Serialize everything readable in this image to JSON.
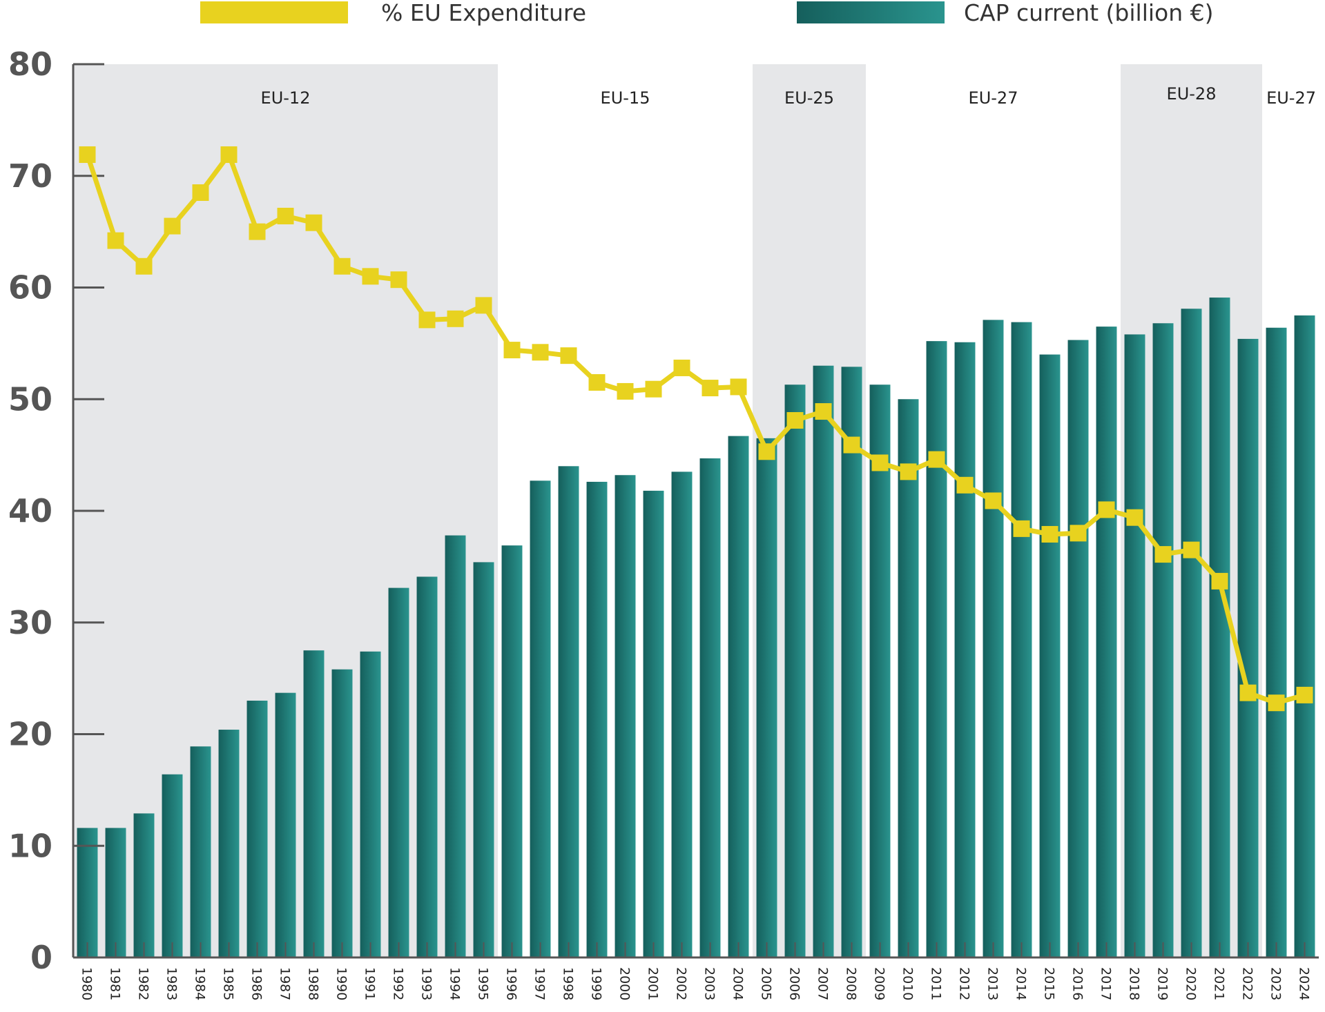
{
  "chart_data": {
    "type": "bar",
    "title": "",
    "xlabel": "",
    "ylabel": "",
    "ylim": [
      0,
      80
    ],
    "yticks": [
      0,
      10,
      20,
      30,
      40,
      50,
      60,
      70,
      80
    ],
    "categories": [
      "1980",
      "1981",
      "1982",
      "1983",
      "1984",
      "1985",
      "1986",
      "1987",
      "1988",
      "1990",
      "1991",
      "1992",
      "1993",
      "1994",
      "1995",
      "1996",
      "1997",
      "1998",
      "1999",
      "2000",
      "2001",
      "2002",
      "2003",
      "2004",
      "2005",
      "2006",
      "2007",
      "2008",
      "2009",
      "2010",
      "2011",
      "2012",
      "2013",
      "2014",
      "2015",
      "2016",
      "2017",
      "2018",
      "2019",
      "2020",
      "2021",
      "2022",
      "2023",
      "2024"
    ],
    "series": [
      {
        "name": "CAP current (billion €)",
        "type": "bar",
        "color": "#1f7f7a",
        "values": [
          11.6,
          11.6,
          12.9,
          16.4,
          18.9,
          20.4,
          23.0,
          23.7,
          27.5,
          25.8,
          27.4,
          33.1,
          34.1,
          37.8,
          35.4,
          36.9,
          42.7,
          44.0,
          42.6,
          43.2,
          41.8,
          43.5,
          44.7,
          46.7,
          46.5,
          51.3,
          53.0,
          52.9,
          51.3,
          50.0,
          55.2,
          55.1,
          57.1,
          56.9,
          54.0,
          55.3,
          56.5,
          55.8,
          56.8,
          58.1,
          59.1,
          55.4,
          56.4,
          57.5
        ]
      },
      {
        "name": "% EU Expenditure",
        "type": "line",
        "color": "#e8d21f",
        "values": [
          71.9,
          64.2,
          61.9,
          65.5,
          68.5,
          71.9,
          65.0,
          66.4,
          65.8,
          61.9,
          61.0,
          60.7,
          57.1,
          57.2,
          58.4,
          54.4,
          54.2,
          53.9,
          51.5,
          50.7,
          50.9,
          52.8,
          51.0,
          51.1,
          45.3,
          48.1,
          48.9,
          45.9,
          44.3,
          43.5,
          44.6,
          42.3,
          40.9,
          38.4,
          37.9,
          38.0,
          40.1,
          39.4,
          36.1,
          36.5,
          33.7,
          23.7,
          22.8,
          23.5
        ]
      }
    ],
    "eras": [
      {
        "label": "EU-12",
        "from": "1980",
        "to": "1995",
        "shaded": true
      },
      {
        "label": "EU-15",
        "from": "1996",
        "to": "2004",
        "shaded": false
      },
      {
        "label": "EU-25",
        "from": "2005",
        "to": "2008",
        "shaded": true
      },
      {
        "label": "EU-27",
        "from": "2009",
        "to": "2017",
        "shaded": false
      },
      {
        "label": "EU-28",
        "from": "2018",
        "to": "2022",
        "shaded": true
      },
      {
        "label": "EU-27",
        "from": "2023",
        "to": "2024",
        "shaded": false
      }
    ],
    "shade_color": "#e6e7e9",
    "legend_position": "top"
  }
}
